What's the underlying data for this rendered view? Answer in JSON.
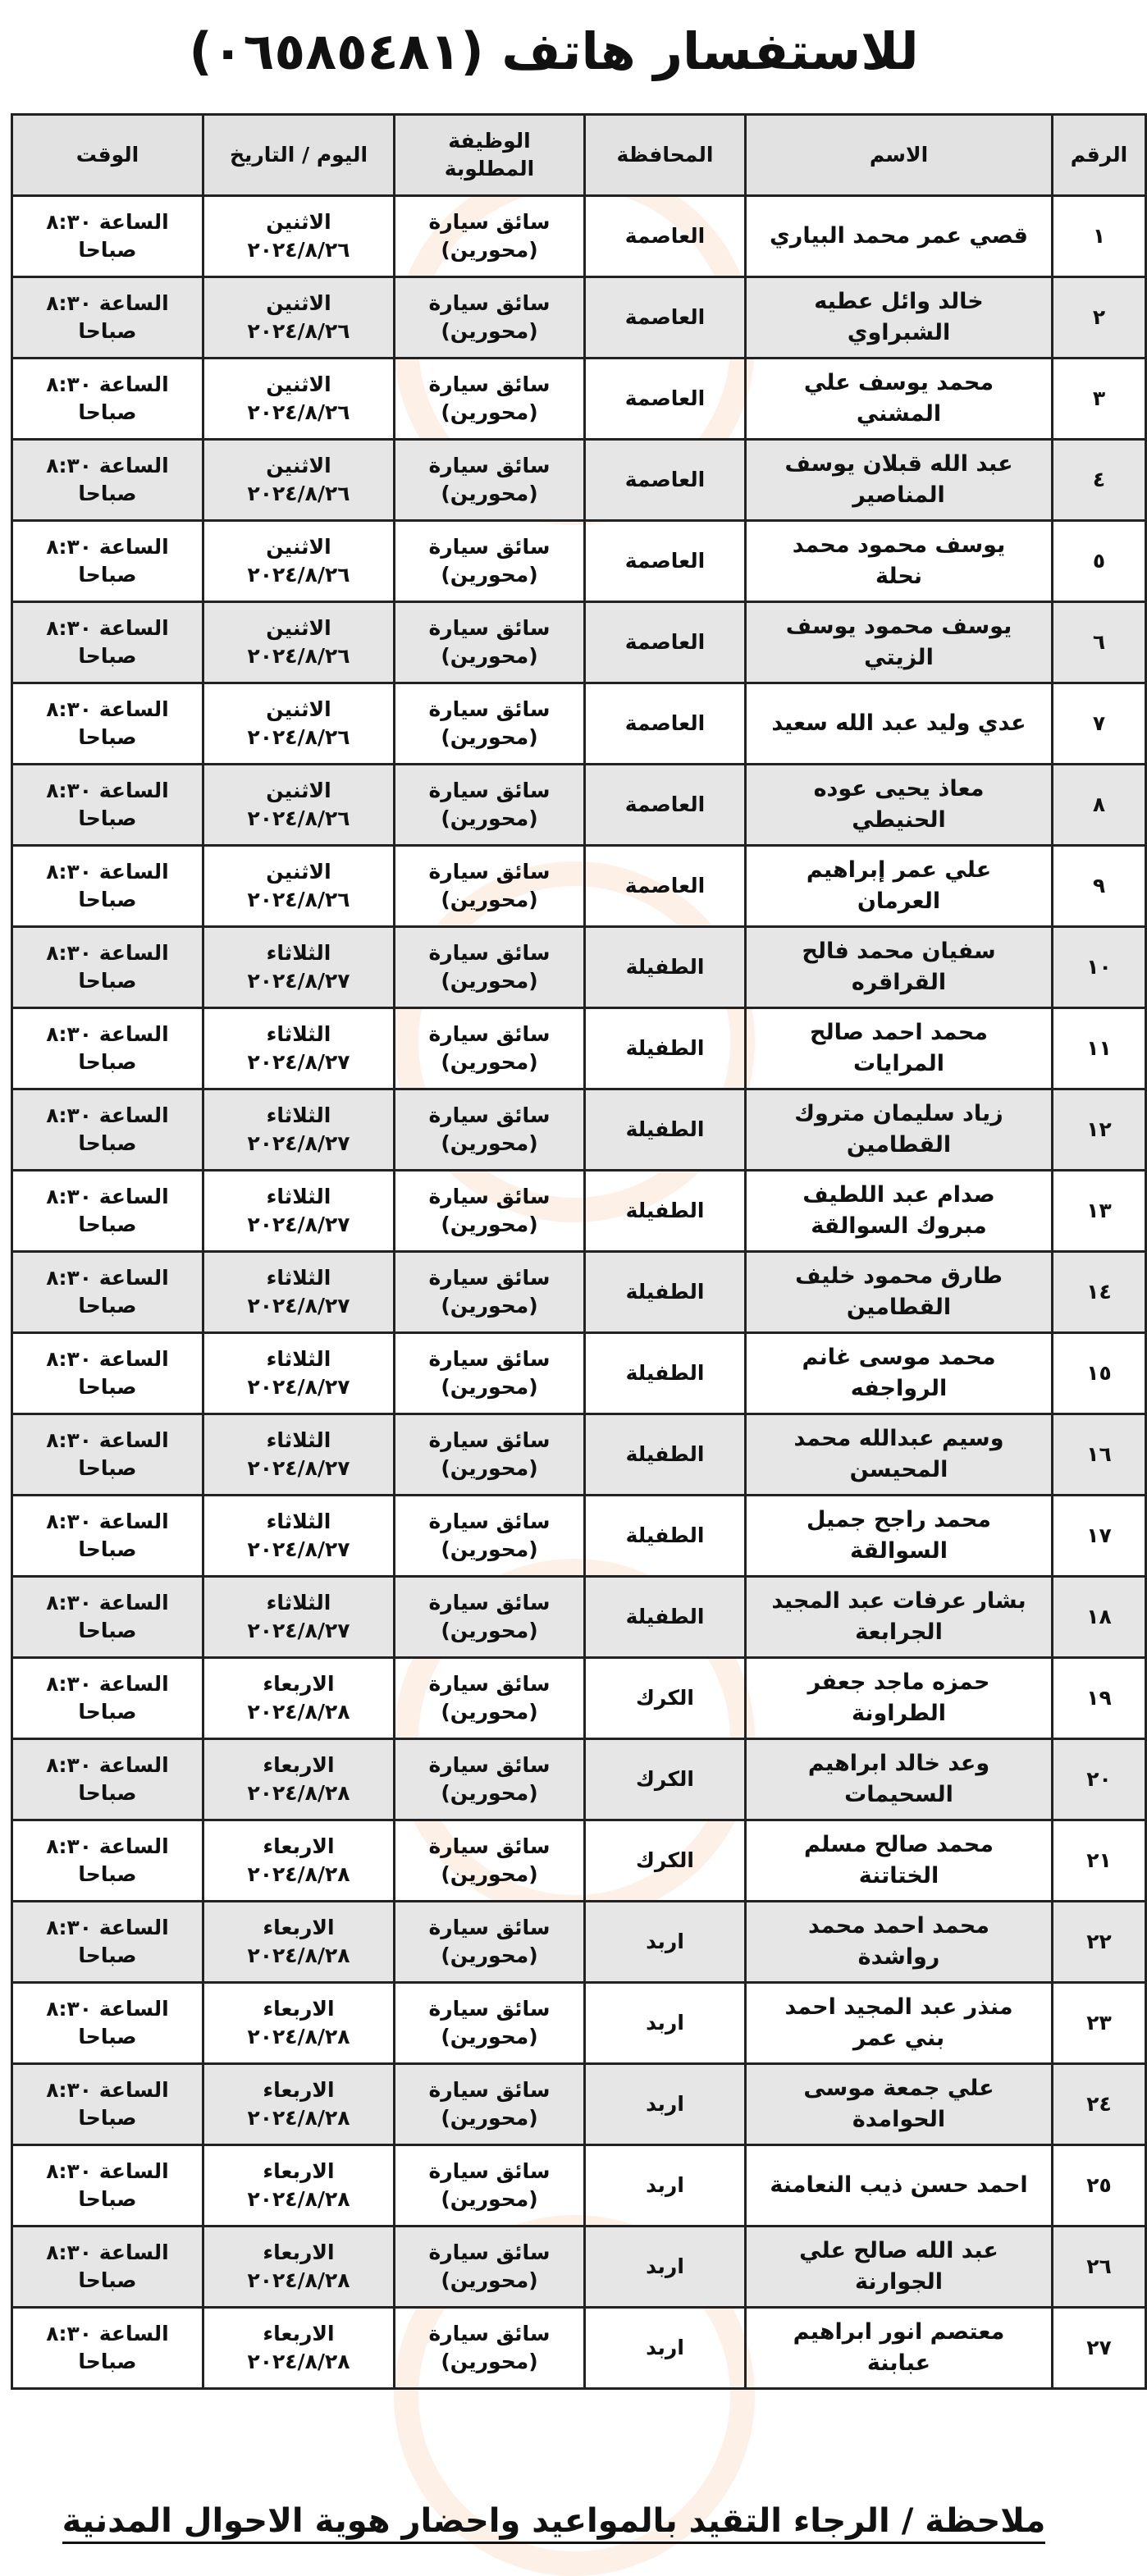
{
  "title": "للاستفسار هاتف (٠٦٥٨٥٤٨١)",
  "headers": {
    "number": "الرقم",
    "name": "الاسم",
    "governorate": "المحافظة",
    "job": "الوظيفة المطلوبة",
    "date": "اليوم / التاريخ",
    "time": "الوقت"
  },
  "rows": [
    {
      "num": "١",
      "name": "قصي عمر محمد البياري",
      "gov": "العاصمة",
      "job1": "سائق سيارة",
      "job2": "(محورين)",
      "day": "الاثنين",
      "date": "٢٠٢٤/٨/٢٦",
      "time1": "الساعة ٨:٣٠",
      "time2": "صباحا"
    },
    {
      "num": "٢",
      "name": "خالد وائل عطيه الشبراوي",
      "gov": "العاصمة",
      "job1": "سائق سيارة",
      "job2": "(محورين)",
      "day": "الاثنين",
      "date": "٢٠٢٤/٨/٢٦",
      "time1": "الساعة ٨:٣٠",
      "time2": "صباحا"
    },
    {
      "num": "٣",
      "name": "محمد يوسف علي المشني",
      "gov": "العاصمة",
      "job1": "سائق سيارة",
      "job2": "(محورين)",
      "day": "الاثنين",
      "date": "٢٠٢٤/٨/٢٦",
      "time1": "الساعة ٨:٣٠",
      "time2": "صباحا"
    },
    {
      "num": "٤",
      "name": "عبد الله قبلان يوسف المناصير",
      "gov": "العاصمة",
      "job1": "سائق سيارة",
      "job2": "(محورين)",
      "day": "الاثنين",
      "date": "٢٠٢٤/٨/٢٦",
      "time1": "الساعة ٨:٣٠",
      "time2": "صباحا"
    },
    {
      "num": "٥",
      "name": "يوسف محمود محمد نحلة",
      "gov": "العاصمة",
      "job1": "سائق سيارة",
      "job2": "(محورين)",
      "day": "الاثنين",
      "date": "٢٠٢٤/٨/٢٦",
      "time1": "الساعة ٨:٣٠",
      "time2": "صباحا"
    },
    {
      "num": "٦",
      "name": "يوسف محمود يوسف الزيتي",
      "gov": "العاصمة",
      "job1": "سائق سيارة",
      "job2": "(محورين)",
      "day": "الاثنين",
      "date": "٢٠٢٤/٨/٢٦",
      "time1": "الساعة ٨:٣٠",
      "time2": "صباحا"
    },
    {
      "num": "٧",
      "name": "عدي وليد عبد الله سعيد",
      "gov": "العاصمة",
      "job1": "سائق سيارة",
      "job2": "(محورين)",
      "day": "الاثنين",
      "date": "٢٠٢٤/٨/٢٦",
      "time1": "الساعة ٨:٣٠",
      "time2": "صباحا"
    },
    {
      "num": "٨",
      "name": "معاذ يحيى عوده الحنيطي",
      "gov": "العاصمة",
      "job1": "سائق سيارة",
      "job2": "(محورين)",
      "day": "الاثنين",
      "date": "٢٠٢٤/٨/٢٦",
      "time1": "الساعة ٨:٣٠",
      "time2": "صباحا"
    },
    {
      "num": "٩",
      "name": "علي عمر إبراهيم العرمان",
      "gov": "العاصمة",
      "job1": "سائق سيارة",
      "job2": "(محورين)",
      "day": "الاثنين",
      "date": "٢٠٢٤/٨/٢٦",
      "time1": "الساعة ٨:٣٠",
      "time2": "صباحا"
    },
    {
      "num": "١٠",
      "name": "سفيان محمد فالح القراقره",
      "gov": "الطفيلة",
      "job1": "سائق سيارة",
      "job2": "(محورين)",
      "day": "الثلاثاء",
      "date": "٢٠٢٤/٨/٢٧",
      "time1": "الساعة ٨:٣٠",
      "time2": "صباحا"
    },
    {
      "num": "١١",
      "name": "محمد احمد صالح المرايات",
      "gov": "الطفيلة",
      "job1": "سائق سيارة",
      "job2": "(محورين)",
      "day": "الثلاثاء",
      "date": "٢٠٢٤/٨/٢٧",
      "time1": "الساعة ٨:٣٠",
      "time2": "صباحا"
    },
    {
      "num": "١٢",
      "name": "زياد سليمان متروك القطامين",
      "gov": "الطفيلة",
      "job1": "سائق سيارة",
      "job2": "(محورين)",
      "day": "الثلاثاء",
      "date": "٢٠٢٤/٨/٢٧",
      "time1": "الساعة ٨:٣٠",
      "time2": "صباحا"
    },
    {
      "num": "١٣",
      "name": "صدام عبد اللطيف مبروك السوالقة",
      "gov": "الطفيلة",
      "job1": "سائق سيارة",
      "job2": "(محورين)",
      "day": "الثلاثاء",
      "date": "٢٠٢٤/٨/٢٧",
      "time1": "الساعة ٨:٣٠",
      "time2": "صباحا"
    },
    {
      "num": "١٤",
      "name": "طارق محمود خليف القطامين",
      "gov": "الطفيلة",
      "job1": "سائق سيارة",
      "job2": "(محورين)",
      "day": "الثلاثاء",
      "date": "٢٠٢٤/٨/٢٧",
      "time1": "الساعة ٨:٣٠",
      "time2": "صباحا"
    },
    {
      "num": "١٥",
      "name": "محمد موسى غانم الرواجفه",
      "gov": "الطفيلة",
      "job1": "سائق سيارة",
      "job2": "(محورين)",
      "day": "الثلاثاء",
      "date": "٢٠٢٤/٨/٢٧",
      "time1": "الساعة ٨:٣٠",
      "time2": "صباحا"
    },
    {
      "num": "١٦",
      "name": "وسيم عبدالله محمد المحيسن",
      "gov": "الطفيلة",
      "job1": "سائق سيارة",
      "job2": "(محورين)",
      "day": "الثلاثاء",
      "date": "٢٠٢٤/٨/٢٧",
      "time1": "الساعة ٨:٣٠",
      "time2": "صباحا"
    },
    {
      "num": "١٧",
      "name": "محمد راجح جميل السوالقة",
      "gov": "الطفيلة",
      "job1": "سائق سيارة",
      "job2": "(محورين)",
      "day": "الثلاثاء",
      "date": "٢٠٢٤/٨/٢٧",
      "time1": "الساعة ٨:٣٠",
      "time2": "صباحا"
    },
    {
      "num": "١٨",
      "name": "بشار عرفات عبد المجيد الجرابعة",
      "gov": "الطفيلة",
      "job1": "سائق سيارة",
      "job2": "(محورين)",
      "day": "الثلاثاء",
      "date": "٢٠٢٤/٨/٢٧",
      "time1": "الساعة ٨:٣٠",
      "time2": "صباحا"
    },
    {
      "num": "١٩",
      "name": "حمزه ماجد جعفر الطراونة",
      "gov": "الكرك",
      "job1": "سائق سيارة",
      "job2": "(محورين)",
      "day": "الاربعاء",
      "date": "٢٠٢٤/٨/٢٨",
      "time1": "الساعة ٨:٣٠",
      "time2": "صباحا"
    },
    {
      "num": "٢٠",
      "name": "وعد خالد ابراهيم السحيمات",
      "gov": "الكرك",
      "job1": "سائق سيارة",
      "job2": "(محورين)",
      "day": "الاربعاء",
      "date": "٢٠٢٤/٨/٢٨",
      "time1": "الساعة ٨:٣٠",
      "time2": "صباحا"
    },
    {
      "num": "٢١",
      "name": "محمد صالح مسلم الختاتنة",
      "gov": "الكرك",
      "job1": "سائق سيارة",
      "job2": "(محورين)",
      "day": "الاربعاء",
      "date": "٢٠٢٤/٨/٢٨",
      "time1": "الساعة ٨:٣٠",
      "time2": "صباحا"
    },
    {
      "num": "٢٢",
      "name": "محمد احمد محمد رواشدة",
      "gov": "اربد",
      "job1": "سائق سيارة",
      "job2": "(محورين)",
      "day": "الاربعاء",
      "date": "٢٠٢٤/٨/٢٨",
      "time1": "الساعة ٨:٣٠",
      "time2": "صباحا"
    },
    {
      "num": "٢٣",
      "name": "منذر عبد المجيد احمد بني عمر",
      "gov": "اربد",
      "job1": "سائق سيارة",
      "job2": "(محورين)",
      "day": "الاربعاء",
      "date": "٢٠٢٤/٨/٢٨",
      "time1": "الساعة ٨:٣٠",
      "time2": "صباحا"
    },
    {
      "num": "٢٤",
      "name": "علي جمعة موسى الحوامدة",
      "gov": "اربد",
      "job1": "سائق سيارة",
      "job2": "(محورين)",
      "day": "الاربعاء",
      "date": "٢٠٢٤/٨/٢٨",
      "time1": "الساعة ٨:٣٠",
      "time2": "صباحا"
    },
    {
      "num": "٢٥",
      "name": "احمد حسن ذيب النعامنة",
      "gov": "اربد",
      "job1": "سائق سيارة",
      "job2": "(محورين)",
      "day": "الاربعاء",
      "date": "٢٠٢٤/٨/٢٨",
      "time1": "الساعة ٨:٣٠",
      "time2": "صباحا"
    },
    {
      "num": "٢٦",
      "name": "عبد الله صالح علي الجوارنة",
      "gov": "اربد",
      "job1": "سائق سيارة",
      "job2": "(محورين)",
      "day": "الاربعاء",
      "date": "٢٠٢٤/٨/٢٨",
      "time1": "الساعة ٨:٣٠",
      "time2": "صباحا"
    },
    {
      "num": "٢٧",
      "name": "معتصم انور ابراهيم عبابنة",
      "gov": "اربد",
      "job1": "سائق سيارة",
      "job2": "(محورين)",
      "day": "الاربعاء",
      "date": "٢٠٢٤/٨/٢٨",
      "time1": "الساعة ٨:٣٠",
      "time2": "صباحا"
    }
  ],
  "note": "ملاحظة / الرجاء التقيد بالمواعيد واحضار هوية الاحوال المدنية",
  "colors": {
    "header_bg": "#e2e2e2",
    "alt_row_bg": "#e6e6e6",
    "border": "#222222",
    "watermark": "#f0aa78"
  }
}
